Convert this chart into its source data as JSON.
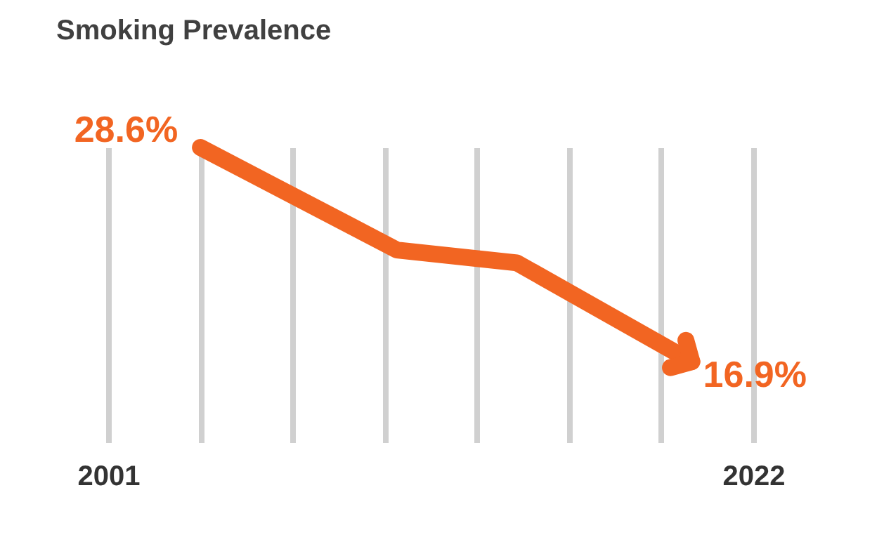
{
  "chart_data": {
    "type": "line",
    "title": "Smoking Prevalence",
    "x": [
      2004,
      2010.4,
      2014.3,
      2020
    ],
    "series": [
      {
        "color": "#f26522",
        "values": [
          28.6,
          23.0,
          22.3,
          16.9
        ],
        "value_labels": [
          "28.6%",
          null,
          null,
          "16.9%"
        ]
      }
    ],
    "xlim": [
      2001,
      2022
    ],
    "ylim": [
      12.5,
      28.6
    ],
    "xticks": [
      2001,
      {
        "value": 2004,
        "label": null
      },
      {
        "value": 2007,
        "label": null
      },
      {
        "value": 2010,
        "label": null
      },
      {
        "value": 2013,
        "label": null
      },
      {
        "value": 2016,
        "label": null
      },
      {
        "value": 2019,
        "label": null
      },
      2022
    ],
    "grid": "x",
    "tick_labels": "x"
  }
}
